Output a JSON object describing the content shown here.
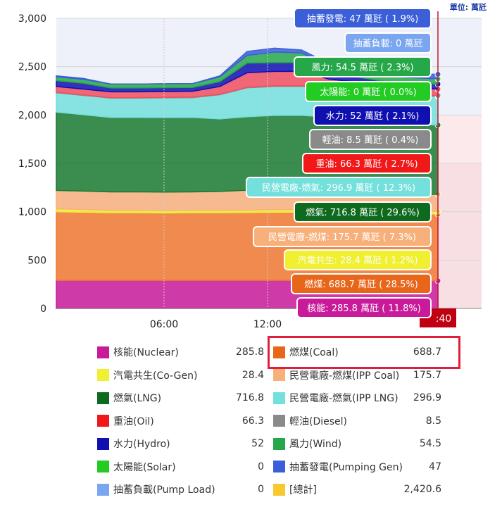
{
  "unit_label": "單位: 萬瓩",
  "chart_data": {
    "type": "area",
    "stacked": true,
    "x_ticks": [
      "06:00",
      "12:00"
    ],
    "cursor_time_fragment": ":40",
    "ylim": [
      0,
      3000
    ],
    "y_ticks": [
      "0",
      "500",
      "1,000",
      "1,500",
      "2,000",
      "2,500",
      "3,000"
    ],
    "series": [
      {
        "name": "核能",
        "color": "#c91a9a",
        "values": [
          290,
          290,
          290,
          290,
          290,
          290,
          290,
          290,
          290,
          290,
          290,
          290,
          290,
          290,
          286
        ]
      },
      {
        "name": "燃煤",
        "color": "#f07830",
        "values": [
          710,
          705,
          700,
          700,
          698,
          700,
          700,
          702,
          705,
          705,
          700,
          698,
          695,
          692,
          689
        ]
      },
      {
        "name": "汽電共生",
        "color": "#f0ef30",
        "values": [
          30,
          28,
          25,
          25,
          25,
          25,
          25,
          25,
          26,
          27,
          28,
          28,
          28,
          28,
          28
        ]
      },
      {
        "name": "民營電廠-燃煤",
        "color": "#f8b07a",
        "values": [
          190,
          190,
          190,
          190,
          190,
          190,
          195,
          205,
          215,
          215,
          200,
          190,
          180,
          178,
          176
        ]
      },
      {
        "name": "燃氣",
        "color": "#1a7a30",
        "values": [
          810,
          790,
          770,
          770,
          770,
          770,
          750,
          760,
          760,
          760,
          760,
          760,
          730,
          720,
          717
        ]
      },
      {
        "name": "民營電廠-燃氣",
        "color": "#74e0dc",
        "values": [
          200,
          200,
          200,
          200,
          205,
          205,
          250,
          300,
          300,
          300,
          295,
          295,
          297,
          297,
          297
        ]
      },
      {
        "name": "輕油",
        "color": "#8a8a8a",
        "values": [
          5,
          5,
          5,
          5,
          5,
          5,
          5,
          5,
          5,
          5,
          8,
          10,
          10,
          9,
          8.5
        ]
      },
      {
        "name": "重油",
        "color": "#f05060",
        "values": [
          60,
          60,
          60,
          60,
          60,
          60,
          80,
          150,
          150,
          150,
          90,
          70,
          66,
          66,
          66
        ]
      },
      {
        "name": "水力",
        "color": "#1010b0",
        "values": [
          60,
          60,
          40,
          40,
          40,
          40,
          50,
          100,
          90,
          90,
          60,
          55,
          52,
          52,
          52
        ]
      },
      {
        "name": "風力",
        "color": "#26a84a",
        "values": [
          40,
          40,
          40,
          40,
          40,
          40,
          50,
          80,
          110,
          100,
          80,
          70,
          60,
          55,
          54.5
        ]
      },
      {
        "name": "太陽能",
        "color": "#22cc22",
        "values": [
          0,
          0,
          0,
          0,
          0,
          0,
          0,
          0,
          0,
          0,
          0,
          0,
          0,
          0,
          0
        ]
      },
      {
        "name": "抽蓄發電",
        "color": "#3b5fd9",
        "values": [
          10,
          10,
          0,
          0,
          0,
          0,
          10,
          40,
          40,
          30,
          20,
          20,
          30,
          40,
          47
        ]
      }
    ],
    "tooltips": [
      {
        "text": "抽蓄發電: 47 萬瓩 ( 1.9%)",
        "bg": "#3b5fd9",
        "fg": "#ffffff"
      },
      {
        "text": "抽蓄負載: 0 萬瓩",
        "bg": "#7aa6f0",
        "fg": "#ffffff"
      },
      {
        "text": "風力: 54.5 萬瓩 ( 2.3%)",
        "bg": "#26a84a",
        "fg": "#ffffff"
      },
      {
        "text": "太陽能: 0 萬瓩 ( 0.0%)",
        "bg": "#22cc22",
        "fg": "#ffffff"
      },
      {
        "text": "水力: 52 萬瓩 ( 2.1%)",
        "bg": "#1010b0",
        "fg": "#ffffff"
      },
      {
        "text": "輕油: 8.5 萬瓩 ( 0.4%)",
        "bg": "#8a8a8a",
        "fg": "#ffffff"
      },
      {
        "text": "重油: 66.3 萬瓩 ( 2.7%)",
        "bg": "#f01818",
        "fg": "#ffffff"
      },
      {
        "text": "民營電廠-燃氣: 296.9 萬瓩 ( 12.3%)",
        "bg": "#74e0dc",
        "fg": "#ffffff"
      },
      {
        "text": "燃氣: 716.8 萬瓩 ( 29.6%)",
        "bg": "#0e6a1e",
        "fg": "#ffffff"
      },
      {
        "text": "民營電廠-燃煤: 175.7 萬瓩 ( 7.3%)",
        "bg": "#f8b07a",
        "fg": "#ffffff"
      },
      {
        "text": "汽電共生: 28.4 萬瓩 ( 1.2%)",
        "bg": "#f0ef30",
        "fg": "#ffffff"
      },
      {
        "text": "燃煤: 688.7 萬瓩 ( 28.5%)",
        "bg": "#e8661a",
        "fg": "#ffffff"
      },
      {
        "text": "核能: 285.8 萬瓩 ( 11.8%)",
        "bg": "#c91a9a",
        "fg": "#ffffff"
      }
    ]
  },
  "legend": [
    {
      "name": "核能(Nuclear)",
      "value": "285.8",
      "color": "#c91a9a"
    },
    {
      "name": "燃煤(Coal)",
      "value": "688.7",
      "color": "#e8661a"
    },
    {
      "name": "汽電共生(Co-Gen)",
      "value": "28.4",
      "color": "#f0ef30"
    },
    {
      "name": "民營電廠-燃煤(IPP Coal)",
      "value": "175.7",
      "color": "#f8b07a"
    },
    {
      "name": "燃氣(LNG)",
      "value": "716.8",
      "color": "#0e6a1e"
    },
    {
      "name": "民營電廠-燃氣(IPP LNG)",
      "value": "296.9",
      "color": "#74e0dc"
    },
    {
      "name": "重油(Oil)",
      "value": "66.3",
      "color": "#f01818"
    },
    {
      "name": "輕油(Diesel)",
      "value": "8.5",
      "color": "#8a8a8a"
    },
    {
      "name": "水力(Hydro)",
      "value": "52",
      "color": "#1010b0"
    },
    {
      "name": "風力(Wind)",
      "value": "54.5",
      "color": "#26a84a"
    },
    {
      "name": "太陽能(Solar)",
      "value": "0",
      "color": "#22cc22"
    },
    {
      "name": "抽蓄發電(Pumping Gen)",
      "value": "47",
      "color": "#3b5fd9"
    },
    {
      "name": "抽蓄負載(Pump Load)",
      "value": "0",
      "color": "#7aa6f0"
    },
    {
      "name": "[總計]",
      "value": "2,420.6",
      "color": "#f8c830"
    }
  ]
}
